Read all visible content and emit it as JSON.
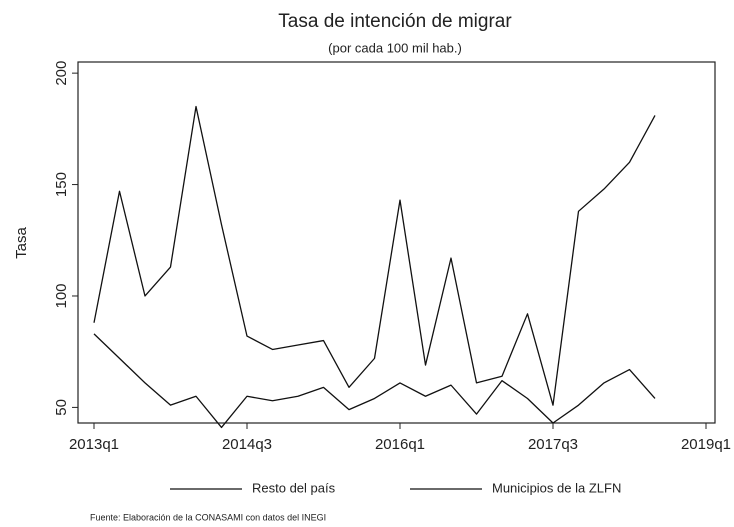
{
  "chart_data": {
    "type": "line",
    "title": "Tasa de intención de migrar",
    "subtitle": "(por cada 100 mil hab.)",
    "y_label": "Tasa",
    "source": "Fuente: Elaboración de la CONASAMI con datos del INEGI",
    "x": [
      "2013q1",
      "2013q2",
      "2013q3",
      "2013q4",
      "2014q1",
      "2014q2",
      "2014q3",
      "2014q4",
      "2015q1",
      "2015q2",
      "2015q3",
      "2015q4",
      "2016q1",
      "2016q2",
      "2016q3",
      "2016q4",
      "2017q1",
      "2017q2",
      "2017q3",
      "2017q4",
      "2018q1",
      "2018q2",
      "2018q3"
    ],
    "xlim": [
      "2013q1",
      "2019q1"
    ],
    "xticks": [
      "2013q1",
      "2014q3",
      "2016q1",
      "2017q3",
      "2019q1"
    ],
    "ylim": [
      43,
      205
    ],
    "yticks": [
      50,
      100,
      150,
      200
    ],
    "series": [
      {
        "name": "Resto del país",
        "color": "#111111",
        "values": [
          83,
          72,
          61,
          51,
          55,
          41,
          55,
          53,
          55,
          59,
          49,
          54,
          61,
          55,
          60,
          47,
          62,
          54,
          43,
          51,
          61,
          67,
          54
        ]
      },
      {
        "name": "Municipios de la ZLFN",
        "color": "#111111",
        "values": [
          88,
          147,
          100,
          113,
          185,
          132,
          82,
          76,
          78,
          80,
          59,
          72,
          143,
          69,
          117,
          61,
          64,
          92,
          51,
          138,
          148,
          160,
          181
        ]
      }
    ]
  }
}
